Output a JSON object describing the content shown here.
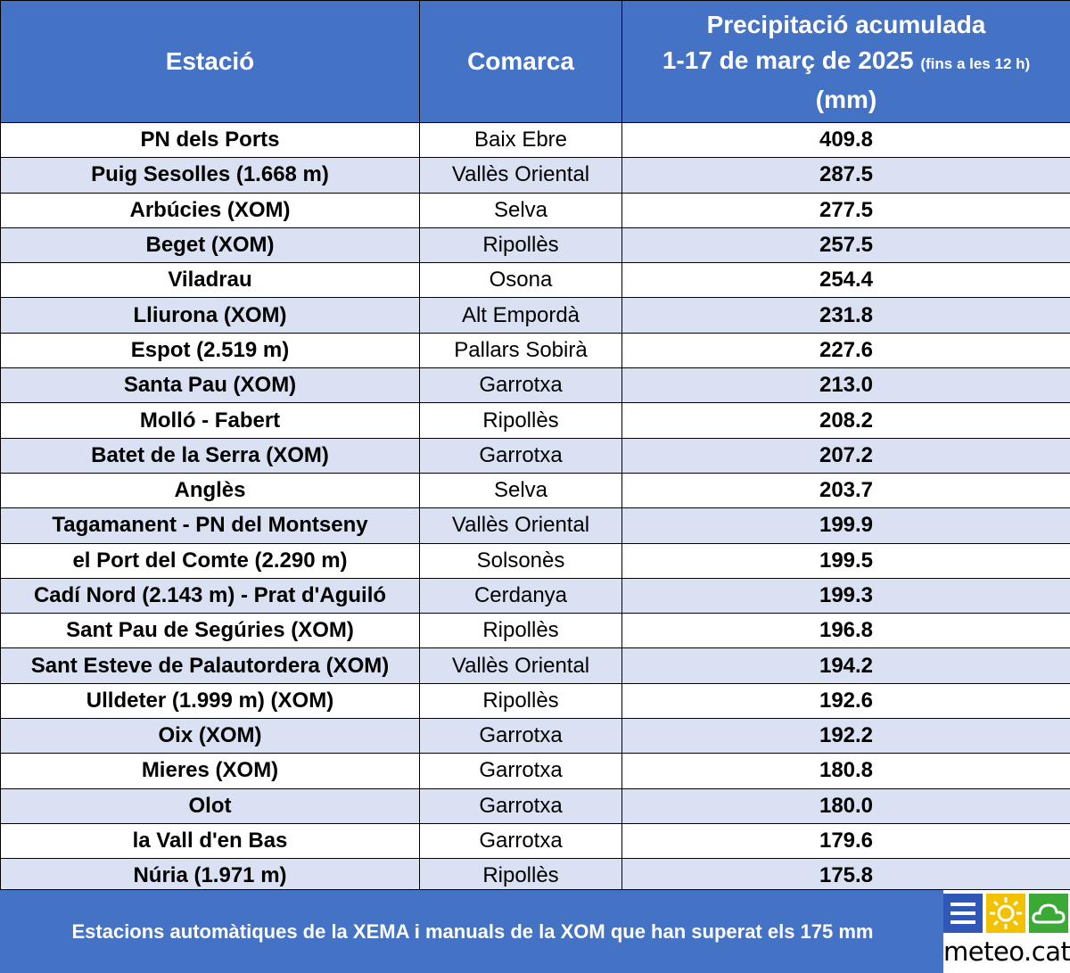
{
  "header": {
    "station": "Estació",
    "comarca": "Comarca",
    "precip_line1": "Precipitació acumulada",
    "precip_line2": "1-17 de març de 2025",
    "precip_note": "(fins a les 12 h)",
    "precip_unit": "(mm)"
  },
  "rows": [
    {
      "station": "PN dels Ports",
      "comarca": "Baix Ebre",
      "value": "409.8"
    },
    {
      "station": "Puig Sesolles (1.668 m)",
      "comarca": "Vallès Oriental",
      "value": "287.5"
    },
    {
      "station": "Arbúcies (XOM)",
      "comarca": "Selva",
      "value": "277.5"
    },
    {
      "station": "Beget (XOM)",
      "comarca": "Ripollès",
      "value": "257.5"
    },
    {
      "station": "Viladrau",
      "comarca": "Osona",
      "value": "254.4"
    },
    {
      "station": "Lliurona (XOM)",
      "comarca": "Alt Empordà",
      "value": "231.8"
    },
    {
      "station": "Espot (2.519 m)",
      "comarca": "Pallars Sobirà",
      "value": "227.6"
    },
    {
      "station": "Santa Pau (XOM)",
      "comarca": "Garrotxa",
      "value": "213.0"
    },
    {
      "station": "Molló - Fabert",
      "comarca": "Ripollès",
      "value": "208.2"
    },
    {
      "station": "Batet de la Serra (XOM)",
      "comarca": "Garrotxa",
      "value": "207.2"
    },
    {
      "station": "Anglès",
      "comarca": "Selva",
      "value": "203.7"
    },
    {
      "station": "Tagamanent - PN del Montseny",
      "comarca": "Vallès Oriental",
      "value": "199.9"
    },
    {
      "station": "el Port del Comte (2.290 m)",
      "comarca": "Solsonès",
      "value": "199.5"
    },
    {
      "station": "Cadí Nord (2.143 m) - Prat d'Aguiló",
      "comarca": "Cerdanya",
      "value": "199.3"
    },
    {
      "station": "Sant Pau de Segúries (XOM)",
      "comarca": "Ripollès",
      "value": "196.8"
    },
    {
      "station": "Sant Esteve de Palautordera (XOM)",
      "comarca": "Vallès Oriental",
      "value": "194.2"
    },
    {
      "station": "Ulldeter (1.999 m) (XOM)",
      "comarca": "Ripollès",
      "value": "192.6"
    },
    {
      "station": "Oix (XOM)",
      "comarca": "Garrotxa",
      "value": "192.2"
    },
    {
      "station": "Mieres (XOM)",
      "comarca": "Garrotxa",
      "value": "180.8"
    },
    {
      "station": "Olot",
      "comarca": "Garrotxa",
      "value": "180.0"
    },
    {
      "station": "la Vall d'en Bas",
      "comarca": "Garrotxa",
      "value": "179.6"
    },
    {
      "station": "Núria (1.971 m)",
      "comarca": "Ripollès",
      "value": "175.8"
    }
  ],
  "footer": {
    "text": "Estacions automàtiques de la XEMA i manuals de la XOM que han superat els 175 mm"
  },
  "logo": {
    "text": "meteo.cat",
    "icons": [
      "fog-icon",
      "sun-icon",
      "cloud-icon"
    ]
  },
  "colors": {
    "header_bg": "#4472c4",
    "band_bg": "#d9e1f2",
    "header_text": "#ffffff"
  }
}
